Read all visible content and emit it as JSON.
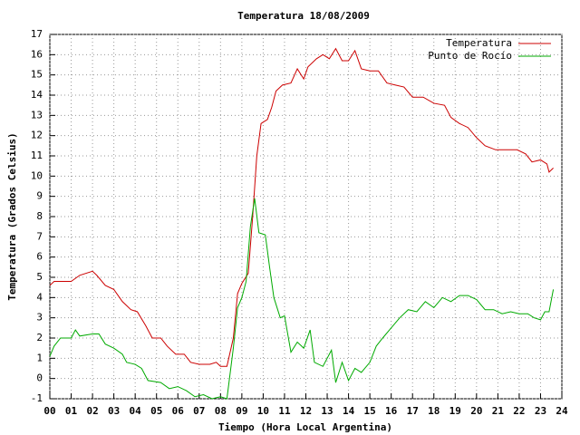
{
  "chart_data": {
    "type": "line",
    "title": "Temperatura 18/08/2009",
    "x_label": "Tiempo (Hora Local Argentina)",
    "y_label": "Temperatura (Grados Celsius)",
    "xlim": [
      0,
      24
    ],
    "xticks": [
      {
        "value": 0,
        "label": "00"
      },
      {
        "value": 1,
        "label": "01"
      },
      {
        "value": 2,
        "label": "02"
      },
      {
        "value": 3,
        "label": "03"
      },
      {
        "value": 4,
        "label": "04"
      },
      {
        "value": 5,
        "label": "05"
      },
      {
        "value": 6,
        "label": "06"
      },
      {
        "value": 7,
        "label": "07"
      },
      {
        "value": 8,
        "label": "08"
      },
      {
        "value": 9,
        "label": "09"
      },
      10,
      11,
      12,
      13,
      14,
      15,
      16,
      17,
      18,
      19,
      20,
      21,
      22,
      23,
      24
    ],
    "ylim": [
      -1,
      17
    ],
    "yticks": [
      -1,
      0,
      1,
      2,
      3,
      4,
      5,
      6,
      7,
      8,
      9,
      10,
      11,
      12,
      13,
      14,
      15,
      16,
      17
    ],
    "grid": true,
    "legend": "top-right",
    "series": [
      {
        "name": "Temperatura",
        "color": "#cc0000",
        "x": [
          0,
          0.2,
          0.5,
          1.0,
          1.4,
          2.0,
          2.2,
          2.6,
          3.0,
          3.4,
          3.8,
          4.1,
          4.5,
          4.8,
          5.2,
          5.5,
          5.9,
          6.3,
          6.6,
          7.0,
          7.5,
          7.8,
          8.0,
          8.3,
          8.6,
          8.8,
          9.0,
          9.3,
          9.5,
          9.7,
          9.9,
          10.2,
          10.4,
          10.6,
          10.9,
          11.3,
          11.6,
          11.9,
          12.1,
          12.5,
          12.8,
          13.1,
          13.4,
          13.7,
          14.0,
          14.3,
          14.6,
          15.0,
          15.4,
          15.8,
          16.2,
          16.6,
          17.0,
          17.5,
          18.0,
          18.5,
          18.8,
          19.2,
          19.6,
          20.0,
          20.4,
          20.9,
          21.4,
          21.9,
          22.3,
          22.6,
          23.0,
          23.3,
          23.4,
          23.6
        ],
        "values": [
          4.6,
          4.8,
          4.8,
          4.8,
          5.1,
          5.3,
          5.1,
          4.6,
          4.4,
          3.8,
          3.4,
          3.3,
          2.6,
          2.0,
          2.0,
          1.6,
          1.2,
          1.2,
          0.8,
          0.7,
          0.7,
          0.8,
          0.6,
          0.6,
          2.0,
          4.2,
          4.7,
          5.2,
          7.9,
          11.0,
          12.6,
          12.8,
          13.4,
          14.2,
          14.5,
          14.6,
          15.3,
          14.8,
          15.4,
          15.8,
          16.0,
          15.8,
          16.3,
          15.7,
          15.7,
          16.2,
          15.3,
          15.2,
          15.2,
          14.6,
          14.5,
          14.4,
          13.9,
          13.9,
          13.6,
          13.5,
          12.9,
          12.6,
          12.4,
          11.9,
          11.5,
          11.3,
          11.3,
          11.3,
          11.1,
          10.7,
          10.8,
          10.6,
          10.2,
          10.4
        ]
      },
      {
        "name": "Punto de Rocío",
        "color": "#00aa00",
        "x": [
          0,
          0.2,
          0.5,
          1.0,
          1.2,
          1.4,
          2.0,
          2.3,
          2.6,
          3.0,
          3.4,
          3.6,
          4.0,
          4.3,
          4.6,
          5.2,
          5.6,
          6.0,
          6.4,
          6.8,
          7.2,
          7.6,
          8.0,
          8.3,
          8.6,
          8.8,
          9.0,
          9.2,
          9.4,
          9.6,
          9.8,
          10.1,
          10.3,
          10.5,
          10.8,
          11.0,
          11.3,
          11.6,
          11.9,
          12.2,
          12.4,
          12.8,
          13.2,
          13.4,
          13.7,
          14.0,
          14.3,
          14.6,
          15.0,
          15.3,
          15.6,
          16.0,
          16.4,
          16.8,
          17.2,
          17.6,
          18.0,
          18.4,
          18.8,
          19.2,
          19.6,
          20.0,
          20.4,
          20.8,
          21.2,
          21.6,
          22.0,
          22.4,
          22.7,
          23.0,
          23.2,
          23.4,
          23.6
        ],
        "values": [
          1.1,
          1.6,
          2.0,
          2.0,
          2.4,
          2.1,
          2.2,
          2.2,
          1.7,
          1.5,
          1.2,
          0.8,
          0.7,
          0.5,
          -0.1,
          -0.2,
          -0.5,
          -0.4,
          -0.6,
          -0.9,
          -0.8,
          -1.0,
          -0.9,
          -1.0,
          1.5,
          3.5,
          4.0,
          4.8,
          7.5,
          8.9,
          7.2,
          7.1,
          5.5,
          4.0,
          3.0,
          3.1,
          1.3,
          1.8,
          1.5,
          2.4,
          0.8,
          0.6,
          1.4,
          -0.2,
          0.8,
          -0.1,
          0.5,
          0.3,
          0.8,
          1.6,
          2.0,
          2.5,
          3.0,
          3.4,
          3.3,
          3.8,
          3.5,
          4.0,
          3.8,
          4.1,
          4.1,
          3.9,
          3.4,
          3.4,
          3.2,
          3.3,
          3.2,
          3.2,
          3.0,
          2.9,
          3.3,
          3.3,
          4.4
        ]
      }
    ]
  }
}
